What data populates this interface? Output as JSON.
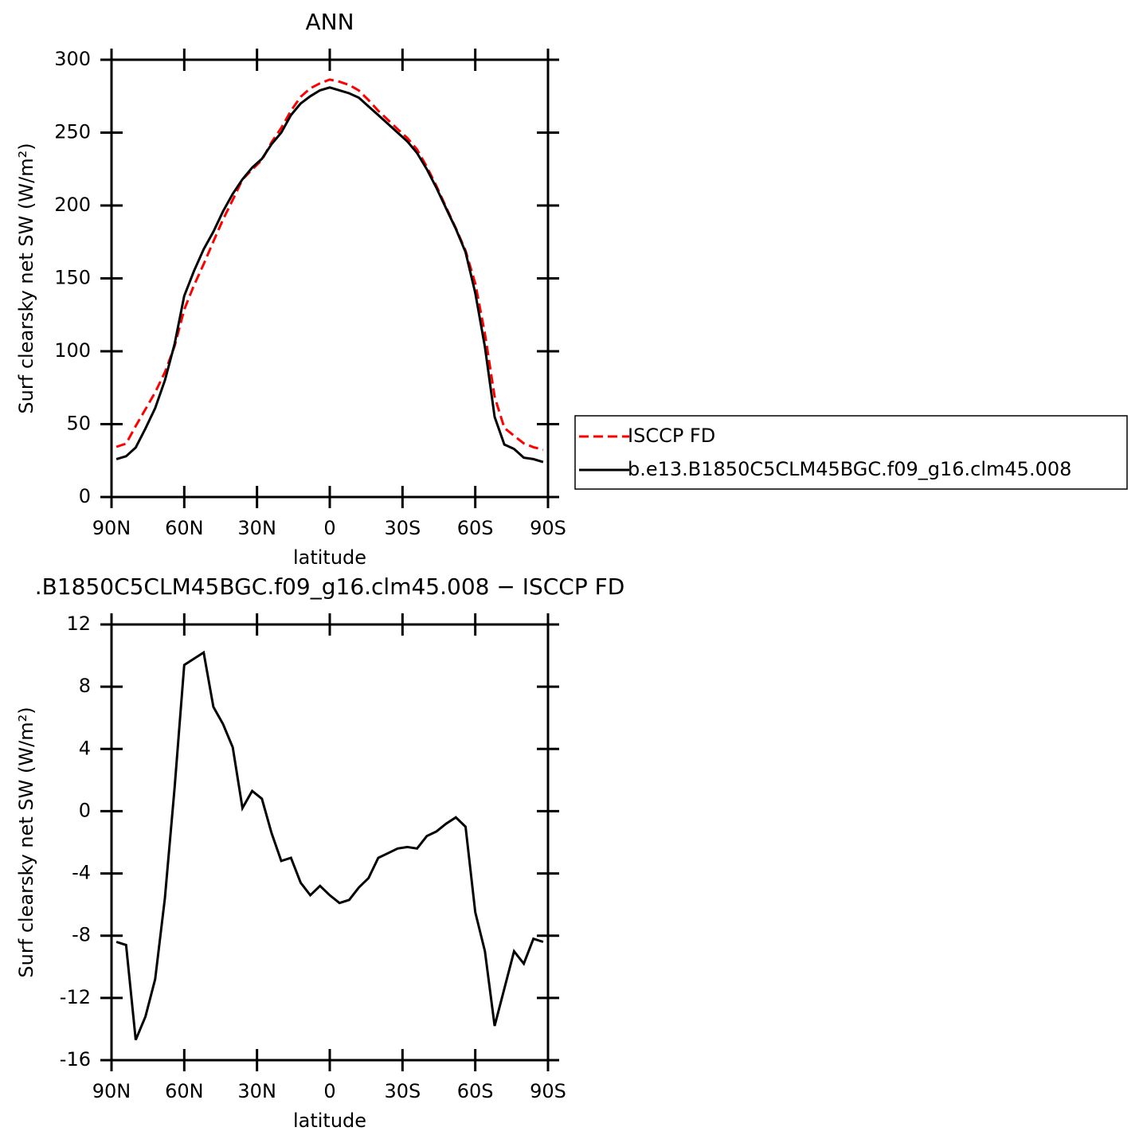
{
  "chart_data": [
    {
      "type": "line",
      "title": "ANN",
      "x_label": "latitude",
      "y_label": "Surf clearsky net SW (W/m²)",
      "x": [
        88,
        84,
        80,
        76,
        72,
        68,
        64,
        60,
        56,
        52,
        48,
        44,
        40,
        36,
        32,
        28,
        24,
        20,
        16,
        12,
        8,
        4,
        0,
        -4,
        -8,
        -12,
        -16,
        -20,
        -24,
        -28,
        -32,
        -36,
        -40,
        -44,
        -48,
        -52,
        -56,
        -60,
        -64,
        -68,
        -72,
        -76,
        -80,
        -84,
        -88
      ],
      "series": [
        {
          "name": "ISCCP FD",
          "color": "#ff0000",
          "dash": true,
          "values": [
            34.4,
            36.6,
            48.7,
            60.2,
            71.8,
            85.6,
            103.5,
            128.6,
            145.2,
            159.8,
            175.3,
            190.4,
            203.9,
            217.8,
            224.7,
            231.2,
            243.4,
            253.2,
            265,
            274.6,
            280.4,
            283.8,
            286.4,
            284.9,
            282.7,
            278.9,
            272.3,
            265,
            258.7,
            252.4,
            246.3,
            238.4,
            226.6,
            213.3,
            198.8,
            184.4,
            169,
            146.5,
            112,
            68.8,
            47.4,
            42,
            36.8,
            34.2,
            32.4
          ]
        },
        {
          "name": "b.e13.B1850C5CLM45BGC.f09_g16.clm45.008",
          "color": "#000000",
          "dash": false,
          "values": [
            26,
            28,
            34,
            47,
            61,
            80,
            105,
            138,
            155,
            170,
            182,
            196,
            208,
            218,
            226,
            232,
            242,
            250,
            262,
            270,
            275,
            279,
            281,
            279,
            277,
            274,
            268,
            262,
            256,
            250,
            244,
            236,
            225,
            212,
            198,
            184,
            168,
            140,
            103,
            55,
            36,
            33,
            27,
            26,
            24
          ]
        }
      ],
      "xlim": [
        90,
        -90
      ],
      "xticks": [
        {
          "value": 90,
          "label": "90N"
        },
        {
          "value": 60,
          "label": "60N"
        },
        {
          "value": 30,
          "label": "30N"
        },
        0,
        {
          "value": -30,
          "label": "30S"
        },
        {
          "value": -60,
          "label": "60S"
        },
        {
          "value": -90,
          "label": "90S"
        }
      ],
      "ylim": [
        0,
        300
      ],
      "yticks": [
        0,
        50,
        100,
        150,
        200,
        250,
        300
      ],
      "legend": "right"
    },
    {
      "type": "line",
      "title": ".B1850C5CLM45BGC.f09_g16.clm45.008 − ISCCP FD",
      "x_label": "latitude",
      "y_label": "Surf clearsky net SW (W/m²)",
      "x": [
        88,
        84,
        80,
        76,
        72,
        68,
        64,
        60,
        56,
        52,
        48,
        44,
        40,
        36,
        32,
        28,
        24,
        20,
        16,
        12,
        8,
        4,
        0,
        -4,
        -8,
        -12,
        -16,
        -20,
        -24,
        -28,
        -32,
        -36,
        -40,
        -44,
        -48,
        -52,
        -56,
        -60,
        -64,
        -68,
        -72,
        -76,
        -80,
        -84,
        -88
      ],
      "series": [
        {
          "color": "#000000",
          "dash": false,
          "values": [
            -8.4,
            -8.6,
            -14.7,
            -13.2,
            -10.8,
            -5.6,
            1.5,
            9.4,
            9.8,
            10.2,
            6.7,
            5.6,
            4.1,
            0.2,
            1.3,
            0.8,
            -1.4,
            -3.2,
            -3.0,
            -4.6,
            -5.4,
            -4.8,
            -5.4,
            -5.9,
            -5.7,
            -4.9,
            -4.3,
            -3.0,
            -2.7,
            -2.4,
            -2.3,
            -2.4,
            -1.6,
            -1.3,
            -0.8,
            -0.4,
            -1.0,
            -6.5,
            -9.0,
            -13.8,
            -11.4,
            -9.0,
            -9.8,
            -8.2,
            -8.4
          ]
        }
      ],
      "xlim": [
        90,
        -90
      ],
      "xticks": [
        {
          "value": 90,
          "label": "90N"
        },
        {
          "value": 60,
          "label": "60N"
        },
        {
          "value": 30,
          "label": "30N"
        },
        0,
        {
          "value": -30,
          "label": "30S"
        },
        {
          "value": -60,
          "label": "60S"
        },
        {
          "value": -90,
          "label": "90S"
        }
      ],
      "ylim": [
        -16,
        12
      ],
      "yticks": [
        -16,
        -12,
        -8,
        -4,
        0,
        4,
        8,
        12
      ]
    }
  ]
}
